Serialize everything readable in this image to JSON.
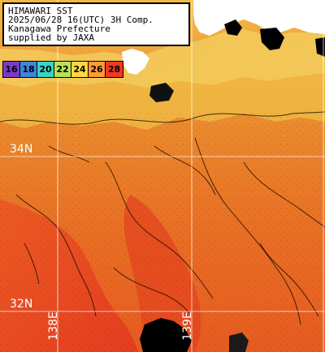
{
  "caption": {
    "line1": "HIMAWARI SST",
    "line2": "2025/06/28 16(UTC) 3H Comp.",
    "line3": "Kanagawa Prefecture",
    "line4": "supplied by JAXA"
  },
  "legend": {
    "items": [
      {
        "label": "16",
        "color": "#7b3ac8"
      },
      {
        "label": "18",
        "color": "#3c86df"
      },
      {
        "label": "20",
        "color": "#37d3c9"
      },
      {
        "label": "22",
        "color": "#b6e356"
      },
      {
        "label": "24",
        "color": "#ffd83d"
      },
      {
        "label": "26",
        "color": "#ff9a32"
      },
      {
        "label": "28",
        "color": "#f4381f"
      }
    ]
  },
  "grid_labels": {
    "lat_34": "34N",
    "lat_32": "32N",
    "lon_138": "138E",
    "lon_139": "139E"
  },
  "colors": {
    "land": "#ffffff",
    "cloud_mask": "#000000",
    "coast_cool": "#efc34e",
    "sea_warm": "#ec7a22",
    "sea_hot": "#e5431f",
    "graticule": "#ffffff"
  }
}
